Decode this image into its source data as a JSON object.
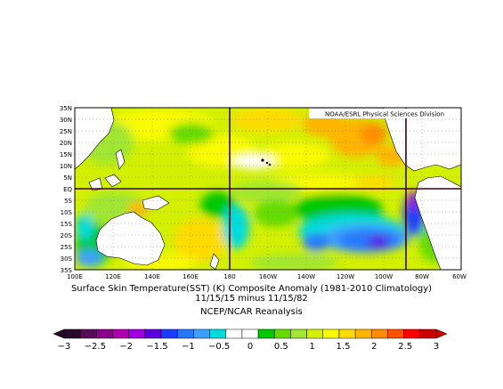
{
  "map": {
    "credit": "NOAA/ESRL Physical Sciences Division",
    "lat_labels": [
      "35N",
      "30N",
      "25N",
      "20N",
      "15N",
      "10N",
      "5N",
      "EQ",
      "5S",
      "10S",
      "15S",
      "20S",
      "25S",
      "30S",
      "35S"
    ],
    "lon_labels": [
      "100E",
      "120E",
      "140E",
      "160E",
      "180",
      "160W",
      "140W",
      "120W",
      "100W",
      "80W",
      "60W"
    ]
  },
  "caption": {
    "line1": "Surface Skin Temperature(SST) (K) Composite Anomaly (1981-2010 Climatology)",
    "line2": "11/15/15 minus 11/15/82",
    "line3": "NCEP/NCAR Reanalysis"
  },
  "colorbar": {
    "labels": [
      "−3",
      "−2.5",
      "−2",
      "−1.5",
      "−1",
      "−0.5",
      "0",
      "0.5",
      "1",
      "1.5",
      "2",
      "2.5",
      "3"
    ],
    "colors": [
      "#2a0a2a",
      "#5a0a5a",
      "#8a008a",
      "#b000b0",
      "#a000e0",
      "#5a00e0",
      "#1e3cff",
      "#2878ff",
      "#3ca0ff",
      "#00dcdc",
      "#ffffff",
      "#ffffff",
      "#00c800",
      "#64dc00",
      "#a0e632",
      "#d2f000",
      "#fafa00",
      "#ffdc00",
      "#ffb400",
      "#ff8c00",
      "#ff5000",
      "#ff0000",
      "#cd0000"
    ]
  }
}
